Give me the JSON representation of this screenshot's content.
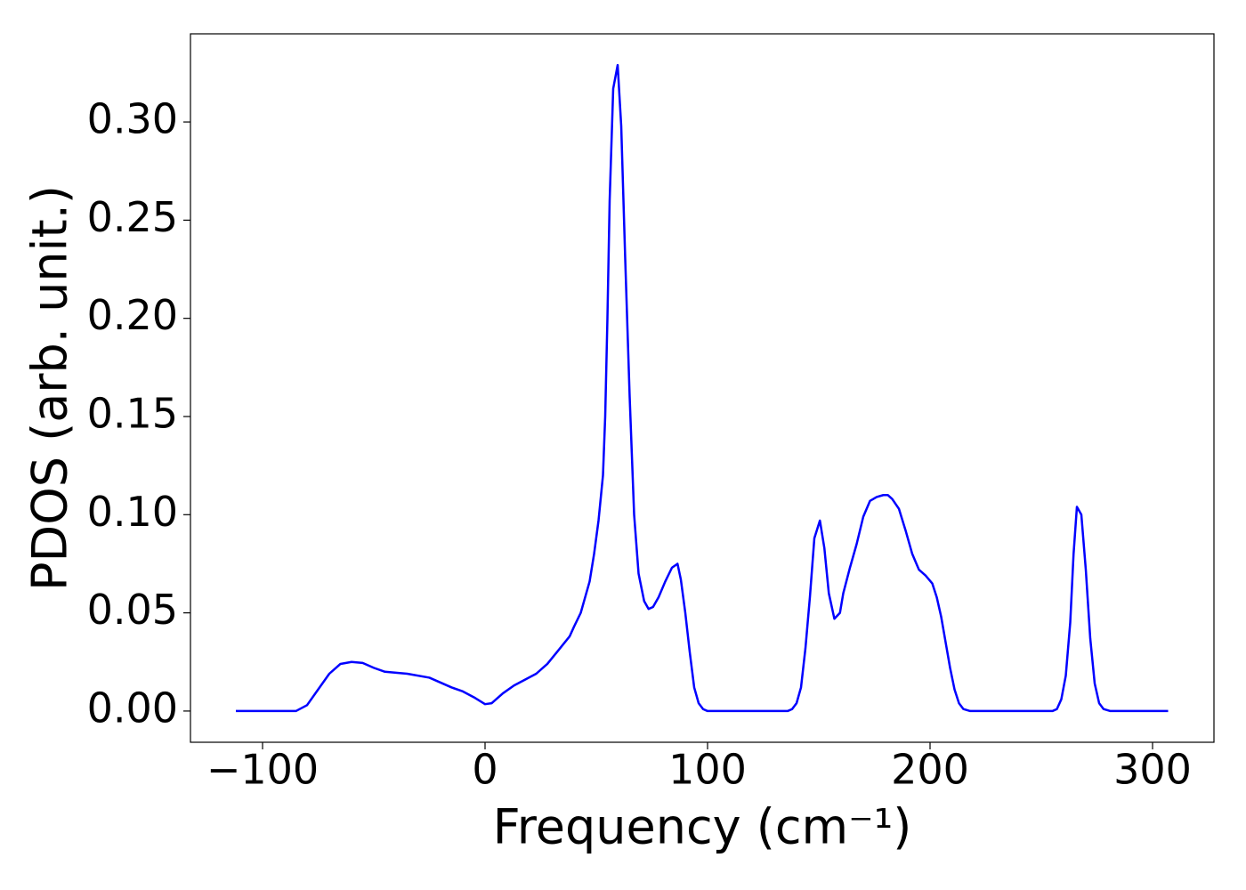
{
  "chart_data": {
    "type": "line",
    "xlabel": "Frequency (cm⁻¹)",
    "ylabel": "PDOS (arb. unit.)",
    "x": [
      -112,
      -85,
      -80,
      -75,
      -70,
      -65,
      -60,
      -55,
      -50,
      -45,
      -35,
      -25,
      -20,
      -15,
      -10,
      -5,
      0,
      3,
      8,
      13,
      18,
      23,
      28,
      33,
      38,
      40,
      43,
      45,
      47,
      49,
      51,
      53,
      54,
      55,
      56,
      57.6,
      59.6,
      61.2,
      63,
      65,
      67,
      69,
      71.5,
      73.5,
      75.5,
      78,
      81,
      84,
      86.5,
      88,
      90,
      92,
      94,
      96,
      98,
      100,
      136,
      138,
      140,
      142,
      144,
      146,
      148,
      150.5,
      152.5,
      154.5,
      157,
      159.5,
      161,
      164,
      167,
      170,
      173,
      176,
      179,
      181,
      183,
      186,
      189,
      192,
      195,
      198,
      201,
      203,
      205,
      207,
      209,
      211,
      213,
      215,
      218,
      255,
      257,
      259,
      261,
      263,
      264.5,
      266,
      268,
      270,
      272,
      274,
      276,
      278,
      281,
      307
    ],
    "series": [
      {
        "color": "#0000ff",
        "values": [
          0,
          0,
          0.003,
          0.011,
          0.019,
          0.024,
          0.025,
          0.0245,
          0.022,
          0.02,
          0.019,
          0.017,
          0.0145,
          0.012,
          0.01,
          0.007,
          0.0035,
          0.004,
          0.009,
          0.013,
          0.016,
          0.019,
          0.024,
          0.031,
          0.038,
          0.043,
          0.05,
          0.058,
          0.066,
          0.08,
          0.097,
          0.12,
          0.15,
          0.2,
          0.26,
          0.317,
          0.329,
          0.298,
          0.23,
          0.16,
          0.1,
          0.07,
          0.056,
          0.052,
          0.053,
          0.058,
          0.066,
          0.073,
          0.075,
          0.067,
          0.05,
          0.03,
          0.012,
          0.004,
          0.001,
          0,
          0,
          0.001,
          0.004,
          0.012,
          0.032,
          0.058,
          0.088,
          0.097,
          0.083,
          0.06,
          0.047,
          0.05,
          0.06,
          0.073,
          0.085,
          0.099,
          0.107,
          0.109,
          0.11,
          0.11,
          0.108,
          0.103,
          0.092,
          0.08,
          0.072,
          0.069,
          0.065,
          0.058,
          0.048,
          0.035,
          0.022,
          0.011,
          0.004,
          0.001,
          0,
          0,
          0.001,
          0.006,
          0.018,
          0.045,
          0.08,
          0.104,
          0.1,
          0.072,
          0.037,
          0.014,
          0.004,
          0.001,
          0,
          0
        ]
      }
    ],
    "xlim": [
      -132.4,
      327.6
    ],
    "ylim": [
      -0.0159,
      0.3449
    ],
    "xticks": [
      {
        "value": -100,
        "label": "−100"
      },
      0,
      100,
      200,
      300
    ],
    "yticks": [
      {
        "value": 0,
        "label": "0.00"
      },
      {
        "value": 0.05,
        "label": "0.05"
      },
      {
        "value": 0.1,
        "label": "0.10"
      },
      {
        "value": 0.15,
        "label": "0.15"
      },
      {
        "value": 0.2,
        "label": "0.20"
      },
      {
        "value": 0.25,
        "label": "0.25"
      },
      {
        "value": 0.3,
        "label": "0.30"
      }
    ]
  }
}
